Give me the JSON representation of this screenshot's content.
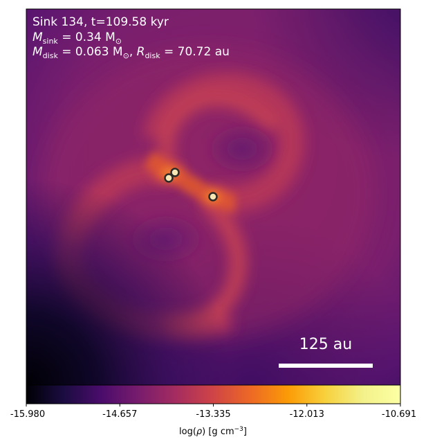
{
  "header": {
    "line1": "Sink 134, t=109.58 kyr",
    "line2_symbol": "M",
    "line2_sub": "sink",
    "line2_rest": " = 0.34 M",
    "line2_sun": "⊙",
    "line3_symbol": "M",
    "line3_sub": "disk",
    "line3_mid": " = 0.063 M",
    "line3_sun": "⊙",
    "line3_sep": ", ",
    "line3_symbol2": "R",
    "line3_sub2": "disk",
    "line3_rest": " = 70.72 au"
  },
  "scale_bar": {
    "label": "125 au",
    "color": "#ffffff"
  },
  "sinks": [
    {
      "name": "sink-a"
    },
    {
      "name": "sink-b"
    },
    {
      "name": "sink-c"
    }
  ],
  "colorbar": {
    "label_prefix": "log(",
    "label_rho": "ρ",
    "label_suffix": ") [g cm",
    "label_exp": "−3",
    "label_close": "]",
    "ticks": [
      "-15.980",
      "-14.657",
      "-13.335",
      "-12.013",
      "-10.691"
    ],
    "min": -15.98,
    "max": -10.691,
    "colormap": "inferno"
  },
  "colors": {
    "background_dark": "#000004",
    "purple": "#7a1f6d",
    "magenta": "#a12b63",
    "orange": "#f0701e",
    "yellow": "#fcffa4"
  }
}
